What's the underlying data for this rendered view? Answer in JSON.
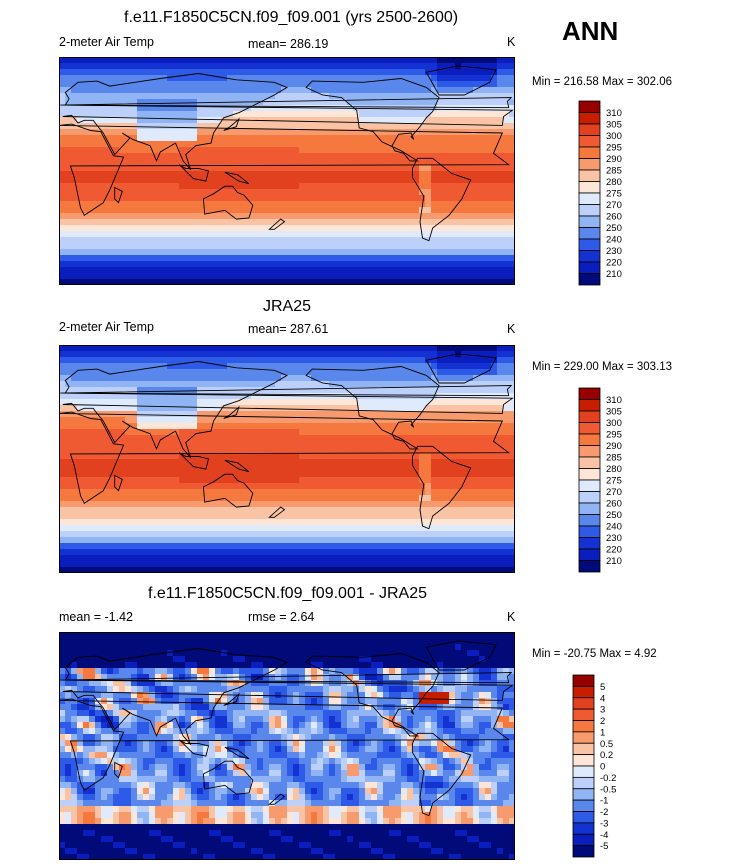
{
  "ann_label": "ANN",
  "panels": [
    {
      "title": "f.e11.F1850C5CN.f09_f09.001 (yrs 2500-2600)",
      "left_label": "2-meter Air Temp",
      "center_label": "mean= 286.19",
      "units": "K",
      "minmax": "Min = 216.58 Max = 302.06",
      "kind": "model"
    },
    {
      "title": "JRA25",
      "left_label": "2-meter Air Temp",
      "center_label": "mean= 287.61",
      "units": "K",
      "minmax": "Min = 229.00 Max = 303.13",
      "kind": "obs"
    },
    {
      "title": "f.e11.F1850C5CN.f09_f09.001 - JRA25",
      "left_label": "mean =  -1.42",
      "center_label": "rmse =   2.64",
      "units": "K",
      "minmax": "Min = -20.75 Max =   4.92",
      "kind": "diff"
    }
  ],
  "colorbars": {
    "temperature": {
      "labels": [
        "310",
        "305",
        "300",
        "295",
        "290",
        "285",
        "280",
        "275",
        "270",
        "260",
        "250",
        "240",
        "230",
        "220",
        "210"
      ],
      "colors": [
        "#960000",
        "#c81e00",
        "#e1411e",
        "#f05a32",
        "#f5783f",
        "#f79b6e",
        "#f9c3a5",
        "#fde6d8",
        "#e0eafd",
        "#bcd0fa",
        "#91b4f4",
        "#5a87eb",
        "#2d5ae6",
        "#1432d2",
        "#0a1ebe",
        "#000a78"
      ]
    },
    "difference": {
      "labels": [
        "5",
        "4",
        "3",
        "2",
        "1",
        "0.5",
        "0.2",
        "0",
        "-0.2",
        "-0.5",
        "-1",
        "-2",
        "-3",
        "-4",
        "-5"
      ],
      "colors": [
        "#960000",
        "#c81e00",
        "#e1411e",
        "#f05a32",
        "#f5783f",
        "#f79b6e",
        "#f9c3a5",
        "#fde6d8",
        "#e0eafd",
        "#bcd0fa",
        "#91b4f4",
        "#5a87eb",
        "#2d5ae6",
        "#1432d2",
        "#0a1ebe",
        "#000a78"
      ]
    }
  },
  "chart_data": [
    {
      "type": "heatmap",
      "title": "f.e11.F1850C5CN.f09_f09.001 (yrs 2500-2600)",
      "variable": "2-meter Air Temp",
      "units": "K",
      "mean": 286.19,
      "min": 216.58,
      "max": 302.06,
      "contour_levels": [
        210,
        220,
        230,
        240,
        250,
        260,
        270,
        275,
        280,
        285,
        290,
        295,
        300,
        305,
        310
      ]
    },
    {
      "type": "heatmap",
      "title": "JRA25",
      "variable": "2-meter Air Temp",
      "units": "K",
      "mean": 287.61,
      "min": 229.0,
      "max": 303.13,
      "contour_levels": [
        210,
        220,
        230,
        240,
        250,
        260,
        270,
        275,
        280,
        285,
        290,
        295,
        300,
        305,
        310
      ]
    },
    {
      "type": "heatmap",
      "title": "f.e11.F1850C5CN.f09_f09.001 - JRA25",
      "units": "K",
      "mean": -1.42,
      "rmse": 2.64,
      "min": -20.75,
      "max": 4.92,
      "contour_levels": [
        -5,
        -4,
        -3,
        -2,
        -1,
        -0.5,
        -0.2,
        0,
        0.2,
        0.5,
        1,
        2,
        3,
        4,
        5
      ]
    }
  ]
}
